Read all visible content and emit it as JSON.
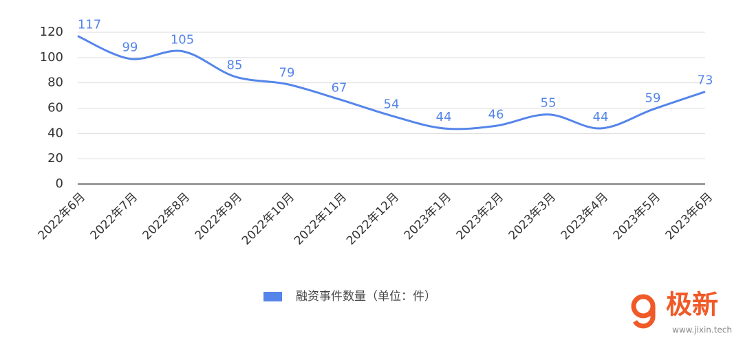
{
  "chart_data": {
    "type": "line",
    "categories": [
      "2022年6月",
      "2022年7月",
      "2022年8月",
      "2022年9月",
      "2022年10月",
      "2022年11月",
      "2022年12月",
      "2023年1月",
      "2023年2月",
      "2023年3月",
      "2023年4月",
      "2023年5月",
      "2023年6月"
    ],
    "series": [
      {
        "name": "融资事件数量（单位：件）",
        "color": "#5585ea",
        "values": [
          117,
          99,
          105,
          85,
          79,
          67,
          54,
          44,
          46,
          55,
          44,
          59,
          73
        ]
      }
    ],
    "ylim": [
      0,
      120
    ],
    "yticks": [
      0,
      20,
      40,
      60,
      80,
      100,
      120
    ],
    "grid": true,
    "smooth": true,
    "data_labels": true,
    "legend": "bottom"
  },
  "watermark": {
    "brand": "极新",
    "url": "www.jixin.tech"
  }
}
